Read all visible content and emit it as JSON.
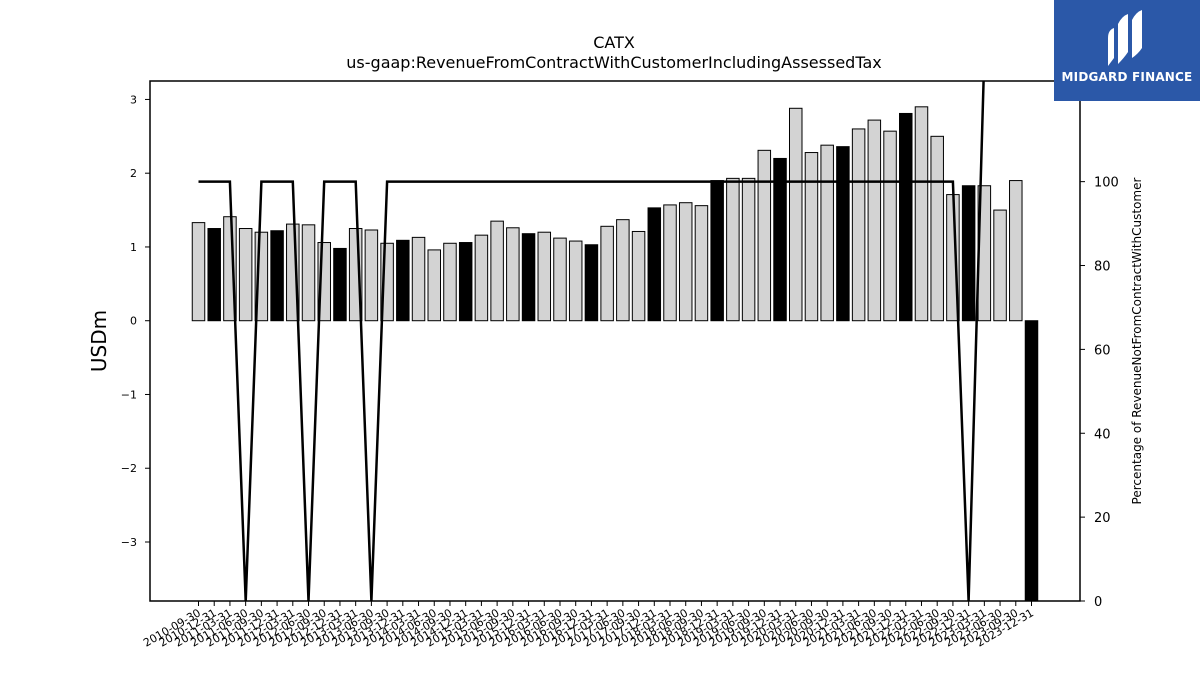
{
  "chart_data": {
    "type": "bar",
    "title": "CATX",
    "subtitle": "us-gaap:RevenueFromContractWithCustomerIncludingAssessedTax",
    "ylabel": "USDm",
    "y2label": "Percentage of RevenueNotFromContractWithCustomer",
    "ylim": [
      -3.8,
      3.25
    ],
    "y2lim": [
      0,
      124
    ],
    "yticks": [
      "−3",
      "−2",
      "−1",
      "0",
      "1",
      "2",
      "3"
    ],
    "y2ticks": [
      "0",
      "20",
      "40",
      "60",
      "80",
      "100"
    ],
    "categories": [
      "2010-09-30",
      "2010-12-31",
      "2011-03-31",
      "2011-06-30",
      "2011-09-30",
      "2011-12-31",
      "2012-03-31",
      "2012-06-30",
      "2012-09-30",
      "2012-12-31",
      "2013-03-31",
      "2013-06-30",
      "2013-09-30",
      "2013-12-31",
      "2014-03-31",
      "2014-06-30",
      "2014-09-30",
      "2014-12-31",
      "2015-03-31",
      "2015-06-30",
      "2015-09-30",
      "2015-12-31",
      "2016-03-31",
      "2016-06-30",
      "2016-09-30",
      "2016-12-31",
      "2017-03-31",
      "2017-06-30",
      "2017-09-30",
      "2017-12-31",
      "2018-03-31",
      "2018-06-30",
      "2018-09-30",
      "2018-12-31",
      "2019-03-31",
      "2019-06-30",
      "2019-09-30",
      "2019-12-31",
      "2020-03-31",
      "2020-06-30",
      "2020-09-30",
      "2020-12-31",
      "2021-03-31",
      "2021-06-30",
      "2021-09-30",
      "2021-12-31",
      "2022-03-31",
      "2022-06-30",
      "2022-09-30",
      "2022-12-31",
      "2023-03-31",
      "2023-06-30",
      "2023-09-30",
      "2023-12-31"
    ],
    "series": [
      {
        "kind": "bar",
        "values": [
          1.33,
          1.25,
          1.41,
          1.25,
          1.2,
          1.22,
          1.31,
          1.3,
          1.06,
          0.98,
          1.25,
          1.23,
          1.05,
          1.09,
          1.13,
          0.96,
          1.05,
          1.06,
          1.16,
          1.35,
          1.26,
          1.18,
          1.2,
          1.12,
          1.08,
          1.03,
          1.28,
          1.37,
          1.21,
          1.53,
          1.57,
          1.6,
          1.56,
          1.9,
          1.93,
          1.93,
          2.31,
          2.2,
          2.88,
          2.28,
          2.38,
          2.36,
          2.6,
          2.72,
          2.57,
          2.81,
          2.9,
          2.5,
          1.71,
          1.83,
          1.83,
          1.5,
          1.9,
          -3.8
        ],
        "fill": [
          "#d3d3d3",
          "#000000",
          "#d3d3d3",
          "#d3d3d3",
          "#d3d3d3",
          "#000000",
          "#d3d3d3",
          "#d3d3d3",
          "#d3d3d3",
          "#000000",
          "#d3d3d3",
          "#d3d3d3",
          "#d3d3d3",
          "#000000",
          "#d3d3d3",
          "#d3d3d3",
          "#d3d3d3",
          "#000000",
          "#d3d3d3",
          "#d3d3d3",
          "#d3d3d3",
          "#000000",
          "#d3d3d3",
          "#d3d3d3",
          "#d3d3d3",
          "#000000",
          "#d3d3d3",
          "#d3d3d3",
          "#d3d3d3",
          "#000000",
          "#d3d3d3",
          "#d3d3d3",
          "#d3d3d3",
          "#000000",
          "#d3d3d3",
          "#d3d3d3",
          "#d3d3d3",
          "#000000",
          "#d3d3d3",
          "#d3d3d3",
          "#d3d3d3",
          "#000000",
          "#d3d3d3",
          "#d3d3d3",
          "#d3d3d3",
          "#000000",
          "#d3d3d3",
          "#d3d3d3",
          "#d3d3d3",
          "#000000",
          "#d3d3d3",
          "#d3d3d3",
          "#d3d3d3",
          "#000000"
        ]
      },
      {
        "kind": "line",
        "axis": "y2",
        "values": [
          100,
          100,
          100,
          0,
          100,
          100,
          100,
          0,
          100,
          100,
          100,
          0,
          100,
          100,
          100,
          100,
          100,
          100,
          100,
          100,
          100,
          100,
          100,
          100,
          100,
          100,
          100,
          100,
          100,
          100,
          100,
          100,
          100,
          100,
          100,
          100,
          100,
          100,
          100,
          100,
          100,
          100,
          100,
          100,
          100,
          100,
          100,
          100,
          100,
          0,
          130,
          130,
          130,
          130
        ]
      }
    ],
    "grid": false
  },
  "logo": {
    "text": "MIDGARD FINANCE"
  }
}
